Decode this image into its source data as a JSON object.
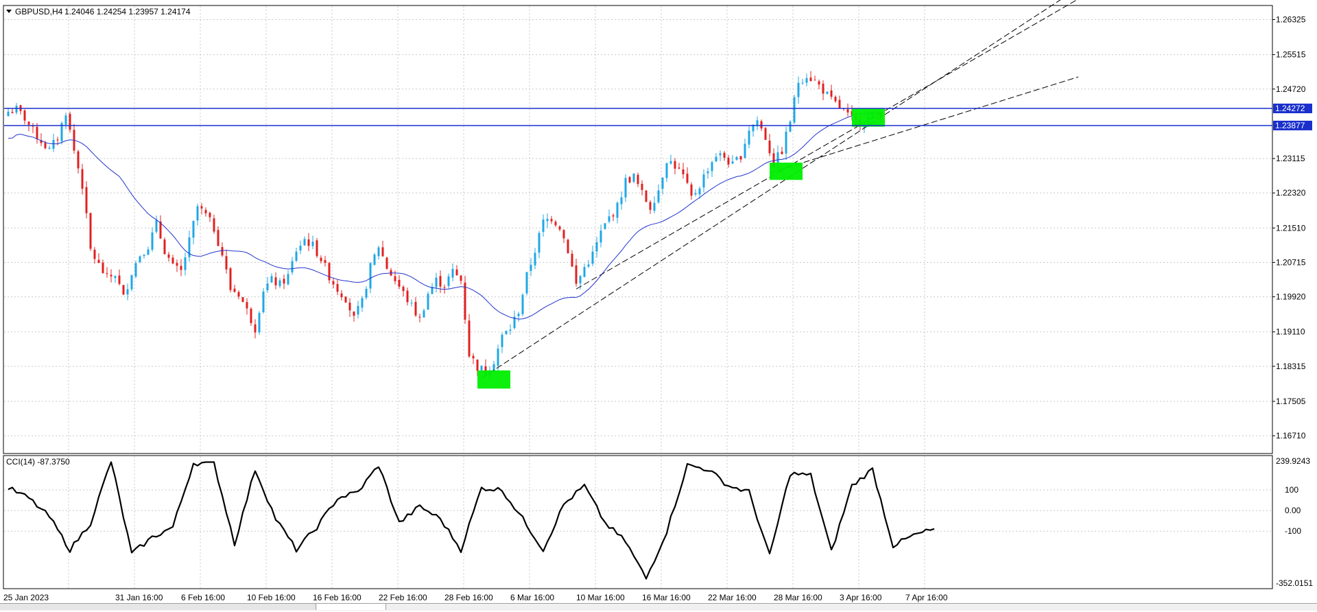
{
  "chart": {
    "symbol_label": "GBPUSD,H4",
    "ohlc_label": "1.24046 1.24254 1.23957 1.24174",
    "indicator_label": "CCI(14) -87.3750"
  },
  "horizontal_lines": [
    {
      "price": 1.24272,
      "label": "1.24272",
      "color": "#1a2fcc"
    },
    {
      "price": 1.23877,
      "label": "1.23877",
      "color": "#1a2fcc"
    }
  ],
  "colors": {
    "bull": "#1fa7e6",
    "bear": "#e02020",
    "ma": "#2233cc",
    "cci": "#000000",
    "zone": "#00ee00",
    "grid": "#c8c8c8",
    "label_bg": "#1a2fcc"
  },
  "chart_data": {
    "type": "candlestick",
    "title": "GBPUSD,H4",
    "price_ticks": [
      "1.26325",
      "1.25515",
      "1.24720",
      "1.23115",
      "1.22320",
      "1.21510",
      "1.20715",
      "1.19920",
      "1.19110",
      "1.18315",
      "1.17505",
      "1.16710"
    ],
    "time_ticks": [
      "25 Jan 2023",
      "31 Jan 16:00",
      "6 Feb 16:00",
      "10 Feb 16:00",
      "16 Feb 16:00",
      "22 Feb 16:00",
      "28 Feb 16:00",
      "6 Mar 16:00",
      "10 Mar 16:00",
      "16 Mar 16:00",
      "22 Mar 16:00",
      "28 Mar 16:00",
      "3 Apr 16:00",
      "7 Apr 16:00"
    ],
    "ylim": [
      1.163,
      1.2665
    ],
    "close_path": [
      [
        0,
        1.242
      ],
      [
        2,
        1.2425
      ],
      [
        4,
        1.2405
      ],
      [
        6,
        1.2375
      ],
      [
        8,
        1.2352
      ],
      [
        10,
        1.233
      ],
      [
        12,
        1.236
      ],
      [
        14,
        1.242
      ],
      [
        16,
        1.233
      ],
      [
        18,
        1.225
      ],
      [
        20,
        1.21
      ],
      [
        22,
        1.2065
      ],
      [
        24,
        1.2035
      ],
      [
        26,
        1.2045
      ],
      [
        28,
        1.199
      ],
      [
        30,
        1.205
      ],
      [
        32,
        1.209
      ],
      [
        34,
        1.211
      ],
      [
        36,
        1.216
      ],
      [
        38,
        1.21
      ],
      [
        40,
        1.206
      ],
      [
        42,
        1.205
      ],
      [
        44,
        1.212
      ],
      [
        46,
        1.22
      ],
      [
        48,
        1.218
      ],
      [
        50,
        1.215
      ],
      [
        52,
        1.209
      ],
      [
        54,
        1.201
      ],
      [
        56,
        1.2
      ],
      [
        58,
        1.196
      ],
      [
        60,
        1.192
      ],
      [
        62,
        1.201
      ],
      [
        64,
        1.203
      ],
      [
        66,
        1.202
      ],
      [
        68,
        1.204
      ],
      [
        70,
        1.21
      ],
      [
        72,
        1.2125
      ],
      [
        74,
        1.211
      ],
      [
        76,
        1.208
      ],
      [
        78,
        1.204
      ],
      [
        80,
        1.201
      ],
      [
        82,
        1.199
      ],
      [
        84,
        1.194
      ],
      [
        86,
        1.198
      ],
      [
        88,
        1.206
      ],
      [
        90,
        1.211
      ],
      [
        92,
        1.206
      ],
      [
        94,
        1.203
      ],
      [
        96,
        1.2
      ],
      [
        98,
        1.197
      ],
      [
        100,
        1.194
      ],
      [
        102,
        1.2
      ],
      [
        104,
        1.203
      ],
      [
        106,
        1.202
      ],
      [
        108,
        1.205
      ],
      [
        110,
        1.203
      ],
      [
        112,
        1.186
      ],
      [
        114,
        1.183
      ],
      [
        116,
        1.182
      ],
      [
        118,
        1.1845
      ],
      [
        120,
        1.19
      ],
      [
        122,
        1.192
      ],
      [
        124,
        1.196
      ],
      [
        126,
        1.204
      ],
      [
        128,
        1.21
      ],
      [
        130,
        1.2165
      ],
      [
        132,
        1.2175
      ],
      [
        134,
        1.2155
      ],
      [
        136,
        1.21
      ],
      [
        138,
        1.202
      ],
      [
        140,
        1.206
      ],
      [
        142,
        1.209
      ],
      [
        144,
        1.214
      ],
      [
        146,
        1.2175
      ],
      [
        148,
        1.22
      ],
      [
        150,
        1.226
      ],
      [
        152,
        1.227
      ],
      [
        154,
        1.223
      ],
      [
        156,
        1.22
      ],
      [
        158,
        1.224
      ],
      [
        160,
        1.231
      ],
      [
        162,
        1.2295
      ],
      [
        164,
        1.227
      ],
      [
        166,
        1.222
      ],
      [
        168,
        1.225
      ],
      [
        170,
        1.229
      ],
      [
        172,
        1.232
      ],
      [
        174,
        1.2315
      ],
      [
        176,
        1.2295
      ],
      [
        178,
        1.232
      ],
      [
        180,
        1.238
      ],
      [
        182,
        1.24
      ],
      [
        184,
        1.236
      ],
      [
        186,
        1.23
      ],
      [
        188,
        1.233
      ],
      [
        190,
        1.24
      ],
      [
        192,
        1.249
      ],
      [
        194,
        1.2505
      ],
      [
        196,
        1.249
      ],
      [
        198,
        1.247
      ],
      [
        200,
        1.2445
      ],
      [
        202,
        1.243
      ],
      [
        204,
        1.241
      ],
      [
        206,
        1.2395
      ],
      [
        208,
        1.24
      ],
      [
        210,
        1.241
      ],
      [
        212,
        1.2417
      ]
    ],
    "bar_count": 213,
    "cci_ylim": [
      -352.0151,
      239.9243
    ],
    "cci_ticks": [
      "239.9243",
      "100",
      "0.00",
      "-100",
      "-352.0151"
    ],
    "cci_path": [
      [
        0,
        110
      ],
      [
        5,
        60
      ],
      [
        10,
        -30
      ],
      [
        15,
        -190
      ],
      [
        20,
        -60
      ],
      [
        25,
        240
      ],
      [
        30,
        -210
      ],
      [
        35,
        -130
      ],
      [
        40,
        -80
      ],
      [
        45,
        230
      ],
      [
        50,
        230
      ],
      [
        55,
        -160
      ],
      [
        60,
        200
      ],
      [
        65,
        -40
      ],
      [
        70,
        -190
      ],
      [
        75,
        -80
      ],
      [
        80,
        60
      ],
      [
        85,
        90
      ],
      [
        90,
        220
      ],
      [
        95,
        -60
      ],
      [
        100,
        20
      ],
      [
        105,
        -40
      ],
      [
        110,
        -190
      ],
      [
        115,
        110
      ],
      [
        120,
        100
      ],
      [
        125,
        -40
      ],
      [
        130,
        -190
      ],
      [
        135,
        30
      ],
      [
        140,
        120
      ],
      [
        145,
        -60
      ],
      [
        150,
        -150
      ],
      [
        155,
        -330
      ],
      [
        160,
        -100
      ],
      [
        165,
        220
      ],
      [
        170,
        200
      ],
      [
        175,
        120
      ],
      [
        180,
        90
      ],
      [
        185,
        -220
      ],
      [
        190,
        180
      ],
      [
        195,
        170
      ],
      [
        200,
        -200
      ],
      [
        205,
        120
      ],
      [
        210,
        200
      ],
      [
        215,
        -170
      ],
      [
        220,
        -120
      ],
      [
        225,
        -90
      ]
    ]
  }
}
